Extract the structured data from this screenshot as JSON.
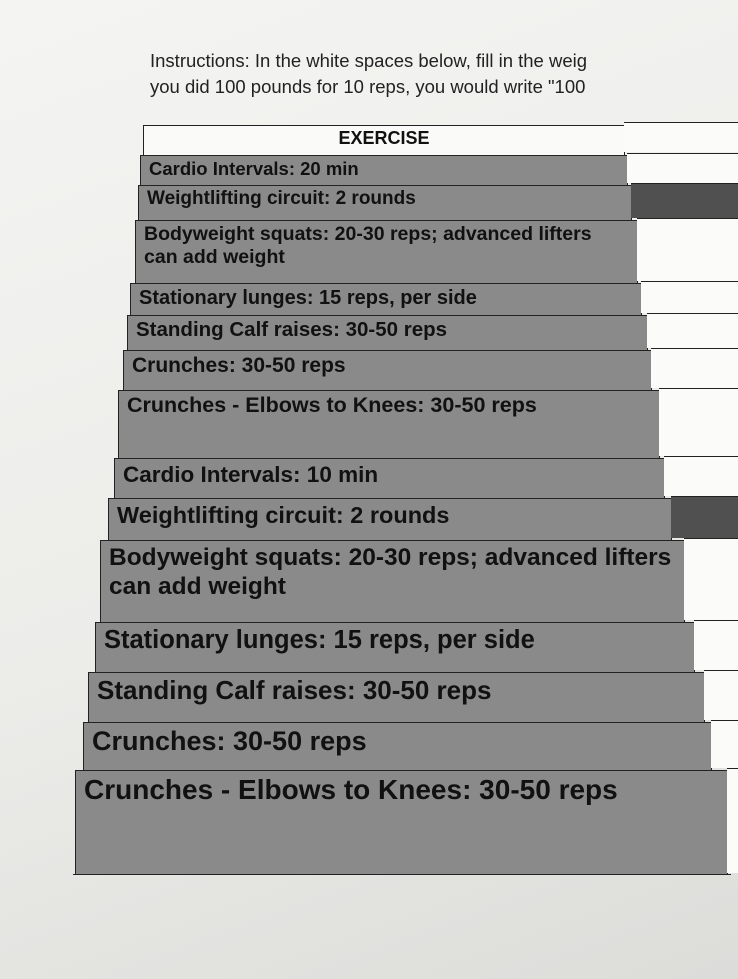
{
  "instructions": {
    "line1": "Instructions: In the white spaces below, fill in the weig",
    "line2": "you did 100 pounds for 10 reps, you would write \"100"
  },
  "table": {
    "header": "EXERCISE",
    "rows": [
      {
        "text": "Cardio Intervals: 20 min",
        "dark": false
      },
      {
        "text": "Weightlifting circuit: 2 rounds",
        "dark": true
      },
      {
        "text": "Bodyweight squats: 20-30 reps; advanced lifters can add weight",
        "dark": false
      },
      {
        "text": "Stationary lunges: 15 reps, per side",
        "dark": false
      },
      {
        "text": "Standing Calf raises: 30-50 reps",
        "dark": false
      },
      {
        "text": "Crunches: 30-50 reps",
        "dark": false
      },
      {
        "text": "Crunches - Elbows to Knees: 30-50 reps",
        "dark": false
      },
      {
        "text": "Cardio Intervals: 10 min",
        "dark": false
      },
      {
        "text": "Weightlifting circuit: 2 rounds",
        "dark": true
      },
      {
        "text": "Bodyweight squats: 20-30 reps; advanced lifters can add weight",
        "dark": false
      },
      {
        "text": "Stationary lunges: 15 reps, per side",
        "dark": false
      },
      {
        "text": "Standing Calf raises: 30-50 reps",
        "dark": false
      },
      {
        "text": "Crunches: 30-50 reps",
        "dark": false
      },
      {
        "text": "Crunches - Elbows to Knees: 30-50 reps",
        "dark": false
      }
    ]
  }
}
